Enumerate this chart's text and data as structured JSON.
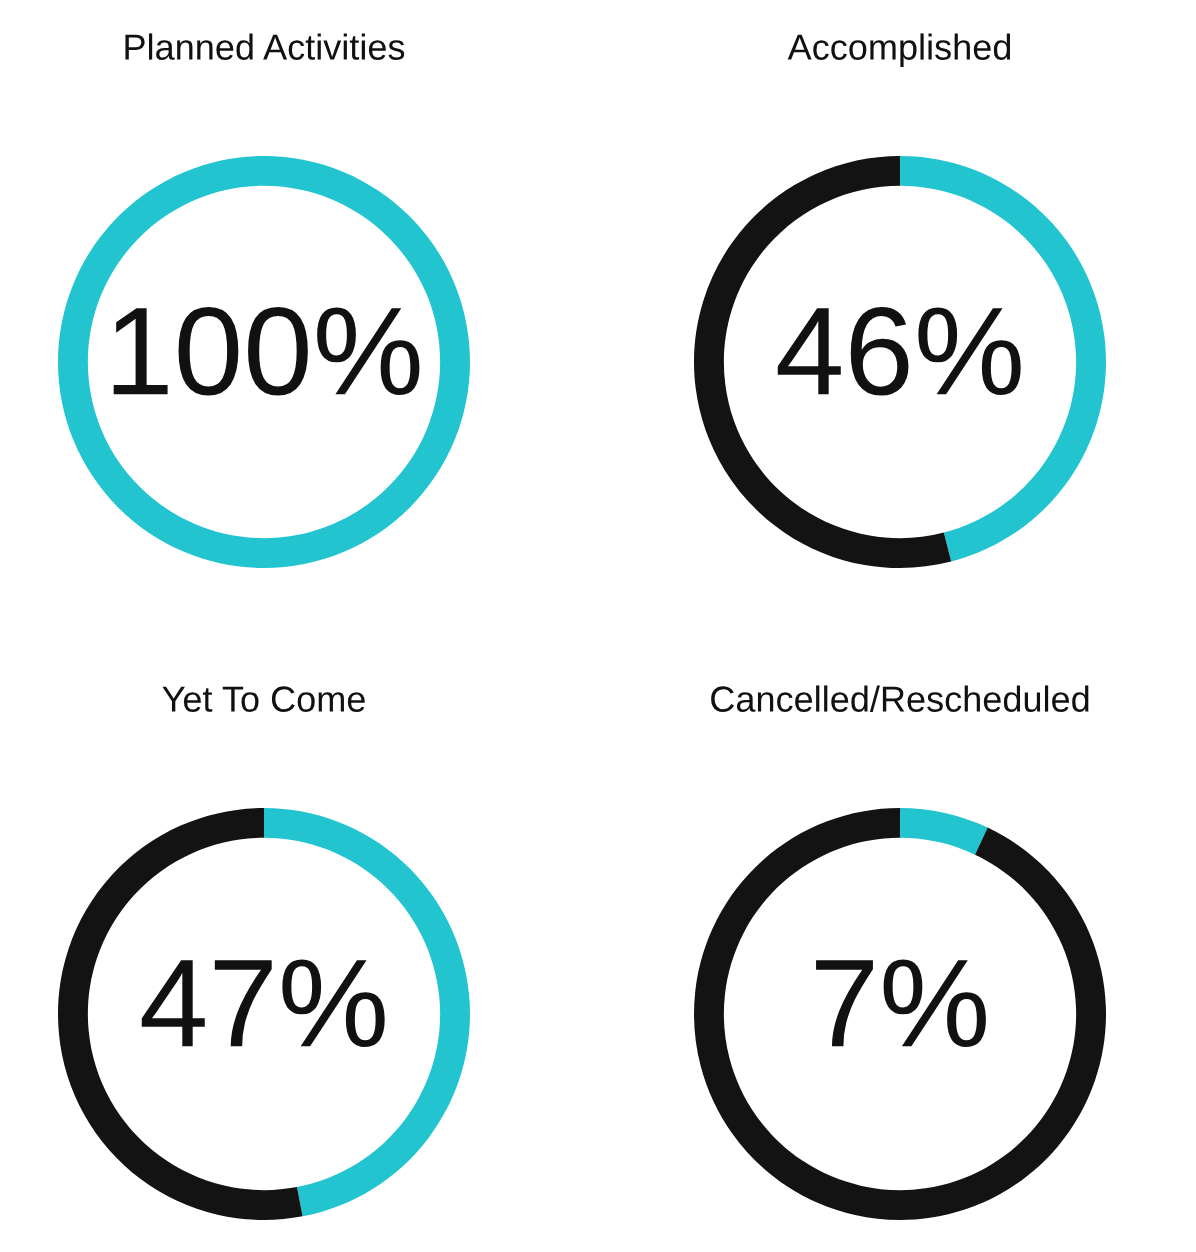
{
  "chart_data": [
    {
      "type": "donut",
      "title": "Planned Activities",
      "categories": [
        null
      ],
      "values": [
        100
      ],
      "colors": [
        "#22c4cf"
      ],
      "annotations": [
        "100%"
      ]
    },
    {
      "type": "donut",
      "title": "Accomplished",
      "categories": [
        null,
        null
      ],
      "values": [
        46,
        54
      ],
      "colors": [
        "#22c4cf",
        "#131313"
      ],
      "annotations": [
        "46%"
      ]
    },
    {
      "type": "donut",
      "title": "Yet To Come",
      "categories": [
        null,
        null
      ],
      "values": [
        47,
        53
      ],
      "colors": [
        "#22c4cf",
        "#131313"
      ],
      "annotations": [
        "47%"
      ]
    },
    {
      "type": "donut",
      "title": "Cancelled/Rescheduled",
      "categories": [
        null,
        null
      ],
      "values": [
        7,
        93
      ],
      "colors": [
        "#22c4cf",
        "#131313"
      ],
      "annotations": [
        "7%"
      ]
    }
  ]
}
